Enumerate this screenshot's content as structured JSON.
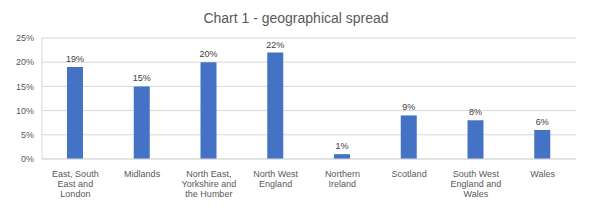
{
  "chart_data": {
    "type": "bar",
    "title": "Chart 1 - geographical spread",
    "categories": [
      "East, South East and London",
      "Midlands",
      "North East, Yorkshire and the Humber",
      "North West England",
      "Northern Ireland",
      "Scotland",
      "South West England and Wales",
      "Wales"
    ],
    "values": [
      19,
      15,
      20,
      22,
      1,
      9,
      8,
      6
    ],
    "value_labels": [
      "19%",
      "15%",
      "20%",
      "22%",
      "1%",
      "9%",
      "8%",
      "6%"
    ],
    "color": "#4472c4",
    "ylim": [
      0,
      25
    ],
    "yticks": [
      {
        "value": 0,
        "label": "0%"
      },
      {
        "value": 5,
        "label": "5%"
      },
      {
        "value": 10,
        "label": "10%"
      },
      {
        "value": 15,
        "label": "15%"
      },
      {
        "value": 20,
        "label": "20%"
      },
      {
        "value": 25,
        "label": "25%"
      }
    ],
    "grid": true,
    "data_labels": true
  }
}
